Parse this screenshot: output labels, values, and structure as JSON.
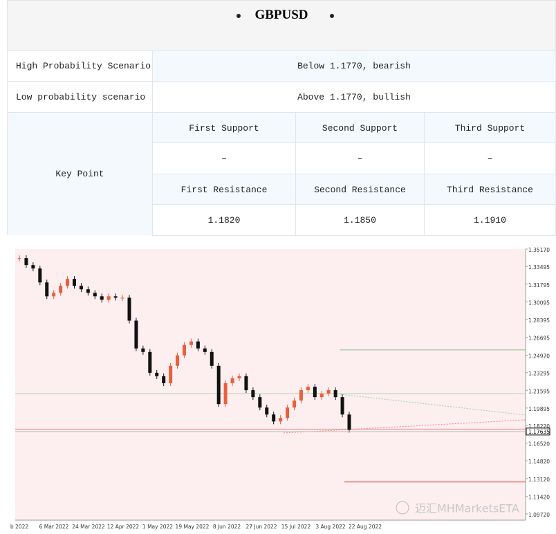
{
  "header": {
    "title": "GBPUSD"
  },
  "table": {
    "rows": [
      [
        "High Probability Scenario",
        "Below 1.1770, bearish"
      ],
      [
        "Low probability scenario",
        "Above 1.1770, bullish"
      ]
    ],
    "key_point": {
      "label": "Key Point",
      "support_headers": [
        "First Support",
        "Second Support",
        "Third Support"
      ],
      "supports": [
        "–",
        "–",
        "–"
      ],
      "resistance_headers": [
        "First Resistance",
        "Second Resistance",
        "Third Resistance"
      ],
      "resistances": [
        "1.1820",
        "1.1850",
        "1.1910"
      ]
    }
  },
  "chart_data": {
    "type": "candlestick",
    "x_labels": [
      "b 2022",
      "6 Mar 2022",
      "24 Mar 2022",
      "12 Apr 2022",
      "1 May 2022",
      "19 May 2022",
      "8 Jun 2022",
      "27 Jun 2022",
      "15 Jul 2022",
      "3 Aug 2022",
      "22 Aug 2022"
    ],
    "closes": [
      1.343,
      1.3363,
      1.333,
      1.3196,
      1.3063,
      1.3096,
      1.3163,
      1.323,
      1.3163,
      1.313,
      1.3096,
      1.3063,
      1.3029,
      1.3063,
      1.3049,
      1.3049,
      1.2829,
      1.2562,
      1.2528,
      1.2328,
      1.2295,
      1.2228,
      1.2395,
      1.2495,
      1.2595,
      1.2629,
      1.2562,
      1.2528,
      1.2395,
      1.2027,
      1.2228,
      1.2275,
      1.2295,
      1.2161,
      1.2094,
      1.1994,
      1.1927,
      1.186,
      1.1894,
      1.1994,
      1.2061,
      1.2161,
      1.2194,
      1.2094,
      1.2128,
      1.2161,
      1.2094,
      1.1927,
      1.178
    ],
    "up_color": "#e8603c",
    "down_color": "#111111",
    "ylim": [
      1.0912,
      1.3517
    ],
    "yticks": [
      {
        "value": 1.3517,
        "label": "1.35170"
      },
      {
        "value": 1.33495,
        "label": "1.33495"
      },
      {
        "value": 1.31795,
        "label": "1.31795"
      },
      {
        "value": 1.30095,
        "label": "1.30095"
      },
      {
        "value": 1.28395,
        "label": "1.28395"
      },
      {
        "value": 1.26695,
        "label": "1.26695"
      },
      {
        "value": 1.2497,
        "label": "1.24970"
      },
      {
        "value": 1.23295,
        "label": "1.23295"
      },
      {
        "value": 1.21595,
        "label": "1.21595"
      },
      {
        "value": 1.19895,
        "label": "1.19895"
      },
      {
        "value": 1.1822,
        "label": "1.18220"
      },
      {
        "value": 1.1652,
        "label": "1.16520"
      },
      {
        "value": 1.1482,
        "label": "1.14820"
      },
      {
        "value": 1.1312,
        "label": "1.13120"
      },
      {
        "value": 1.1142,
        "label": "1.11420"
      },
      {
        "value": 1.0972,
        "label": "1.09720"
      }
    ],
    "levels": [
      {
        "value": 1.2548,
        "color": "#7cc47c"
      },
      {
        "value": 1.2128,
        "color": "#a6d8a6"
      },
      {
        "value": 1.1787,
        "color": "#e88a80"
      },
      {
        "value": 1.1279,
        "color": "#e0503c"
      }
    ],
    "current_price": {
      "value": 1.17635,
      "label": "1.17635"
    },
    "watermark": "迈汇MHMarketsETA"
  }
}
